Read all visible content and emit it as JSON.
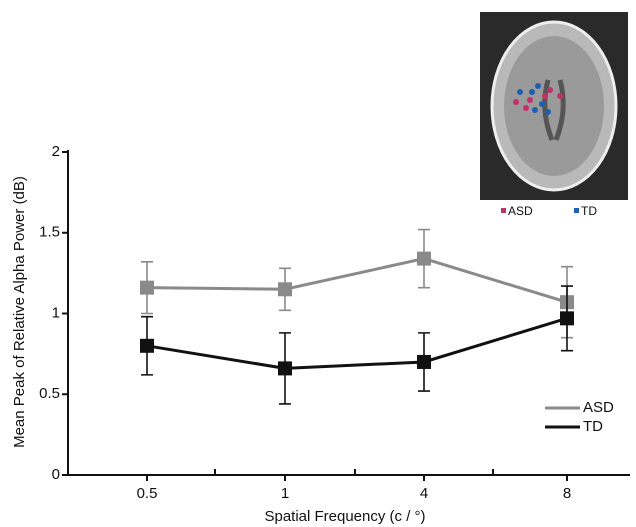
{
  "chart_data": {
    "type": "line",
    "x_label": "Spatial Frequency (c / °)",
    "y_label": "Mean Peak of Relative Alpha Power (dB)",
    "categories": [
      "0.5",
      "1",
      "4",
      "8"
    ],
    "series": [
      {
        "name": "ASD",
        "color": "#8a8a8a",
        "values": [
          1.16,
          1.15,
          1.34,
          1.07
        ],
        "errors": [
          0.16,
          0.13,
          0.18,
          0.22
        ]
      },
      {
        "name": "TD",
        "color": "#111111",
        "values": [
          0.8,
          0.66,
          0.7,
          0.97
        ],
        "errors": [
          0.18,
          0.22,
          0.18,
          0.2
        ]
      }
    ],
    "ylim": [
      0,
      2
    ],
    "yticks": [
      0,
      0.5,
      1,
      1.5,
      2
    ],
    "inset_legend": [
      {
        "text": "ASD",
        "color": "#c2306a"
      },
      {
        "text": "TD",
        "color": "#1f5fb0"
      }
    ]
  }
}
